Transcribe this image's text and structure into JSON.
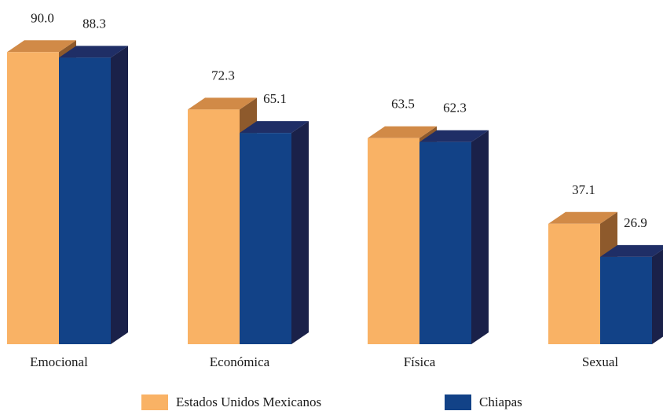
{
  "chart_data": {
    "type": "bar",
    "title": "",
    "xlabel": "",
    "ylabel": "",
    "categories": [
      "Emocional",
      "Económica",
      "Física",
      "Sexual"
    ],
    "series": [
      {
        "name": "Estados Unidos Mexicanos",
        "values": [
          90.0,
          72.3,
          63.5,
          37.1
        ],
        "labels": [
          "90.0",
          "72.3",
          "63.5",
          "37.1"
        ],
        "color": "#F9B265",
        "top_color": "#D18A47",
        "side_color": "#8E5A2C"
      },
      {
        "name": "Chiapas",
        "values": [
          88.3,
          65.1,
          62.3,
          26.9
        ],
        "labels": [
          "88.3",
          "65.1",
          "62.3",
          "26.9"
        ],
        "color": "#124287",
        "top_color": "#1F2E66",
        "side_color": "#1A2149"
      }
    ],
    "ylim": [
      0,
      100
    ],
    "grid": false,
    "legend_position": "bottom",
    "style": "3d-bar"
  }
}
